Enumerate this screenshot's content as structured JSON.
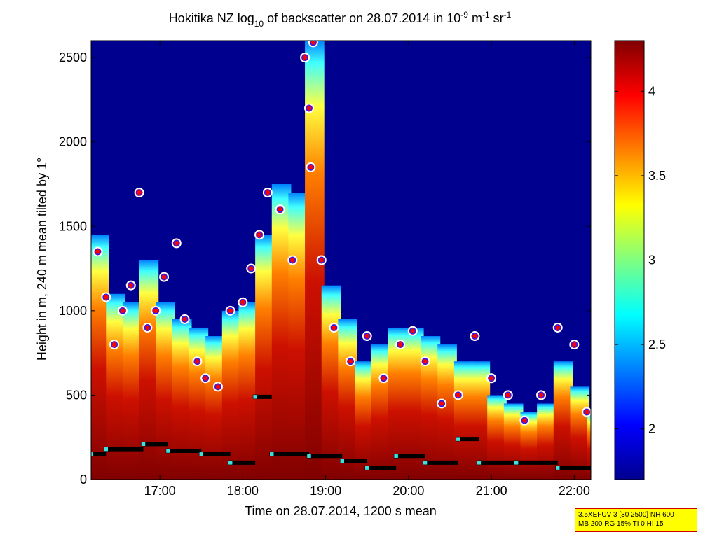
{
  "chart_data": {
    "type": "heatmap",
    "title_main": "Hokitika NZ log",
    "title_sub": "10",
    "title_mid": " of backscatter on 28.07.2014 in 10",
    "title_exp1": "-9",
    "title_unit1": " m",
    "title_exp2": "-1",
    "title_unit2": " sr",
    "title_exp3": "-1",
    "xlabel": "Time on 28.07.2014, 1200 s mean",
    "ylabel": "Height in m, 240 m mean tilted by 1°",
    "xlim_hours": [
      16.17,
      22.2
    ],
    "ylim": [
      0,
      2600
    ],
    "xticks": [
      {
        "hour": 17,
        "label": "17:00"
      },
      {
        "hour": 18,
        "label": "18:00"
      },
      {
        "hour": 19,
        "label": "19:00"
      },
      {
        "hour": 20,
        "label": "20:00"
      },
      {
        "hour": 21,
        "label": "21:00"
      },
      {
        "hour": 22,
        "label": "22:00"
      }
    ],
    "yticks": [
      {
        "value": 0,
        "label": "0"
      },
      {
        "value": 500,
        "label": "500"
      },
      {
        "value": 1000,
        "label": "1000"
      },
      {
        "value": 1500,
        "label": "1500"
      },
      {
        "value": 2000,
        "label": "2000"
      },
      {
        "value": 2500,
        "label": "2500"
      }
    ],
    "colorbar": {
      "clim": [
        1.7,
        4.3
      ],
      "ticks": [
        {
          "value": 2,
          "label": "2"
        },
        {
          "value": 2.5,
          "label": "2.5"
        },
        {
          "value": 3,
          "label": "3"
        },
        {
          "value": 3.5,
          "label": "3.5"
        },
        {
          "value": 4,
          "label": "4"
        }
      ],
      "colormap": "jet"
    },
    "backscatter_columns": [
      {
        "t": 16.2,
        "top": 1450
      },
      {
        "t": 16.4,
        "top": 1100
      },
      {
        "t": 16.6,
        "top": 1050
      },
      {
        "t": 16.8,
        "top": 1300
      },
      {
        "t": 17.0,
        "top": 1050
      },
      {
        "t": 17.2,
        "top": 950
      },
      {
        "t": 17.4,
        "top": 900
      },
      {
        "t": 17.6,
        "top": 850
      },
      {
        "t": 17.8,
        "top": 1000
      },
      {
        "t": 18.0,
        "top": 1050
      },
      {
        "t": 18.2,
        "top": 1450
      },
      {
        "t": 18.4,
        "top": 1750
      },
      {
        "t": 18.6,
        "top": 1700
      },
      {
        "t": 18.8,
        "top": 2600
      },
      {
        "t": 19.0,
        "top": 1150
      },
      {
        "t": 19.2,
        "top": 950
      },
      {
        "t": 19.4,
        "top": 700
      },
      {
        "t": 19.6,
        "top": 800
      },
      {
        "t": 19.8,
        "top": 900
      },
      {
        "t": 20.0,
        "top": 900
      },
      {
        "t": 20.2,
        "top": 850
      },
      {
        "t": 20.4,
        "top": 800
      },
      {
        "t": 20.6,
        "top": 700
      },
      {
        "t": 20.8,
        "top": 700
      },
      {
        "t": 21.0,
        "top": 500
      },
      {
        "t": 21.2,
        "top": 450
      },
      {
        "t": 21.4,
        "top": 400
      },
      {
        "t": 21.6,
        "top": 450
      },
      {
        "t": 21.8,
        "top": 700
      },
      {
        "t": 22.0,
        "top": 550
      },
      {
        "t": 22.2,
        "top": 400
      }
    ],
    "cloud_layer_markers": [
      {
        "t": 16.25,
        "h": 1350
      },
      {
        "t": 16.35,
        "h": 1080
      },
      {
        "t": 16.45,
        "h": 800
      },
      {
        "t": 16.55,
        "h": 1000
      },
      {
        "t": 16.65,
        "h": 1150
      },
      {
        "t": 16.75,
        "h": 1700
      },
      {
        "t": 16.85,
        "h": 900
      },
      {
        "t": 16.95,
        "h": 1000
      },
      {
        "t": 17.05,
        "h": 1200
      },
      {
        "t": 17.2,
        "h": 1400
      },
      {
        "t": 17.3,
        "h": 950
      },
      {
        "t": 17.45,
        "h": 700
      },
      {
        "t": 17.55,
        "h": 600
      },
      {
        "t": 17.7,
        "h": 550
      },
      {
        "t": 17.85,
        "h": 1000
      },
      {
        "t": 18.0,
        "h": 1050
      },
      {
        "t": 18.1,
        "h": 1250
      },
      {
        "t": 18.2,
        "h": 1450
      },
      {
        "t": 18.3,
        "h": 1700
      },
      {
        "t": 18.45,
        "h": 1600
      },
      {
        "t": 18.6,
        "h": 1300
      },
      {
        "t": 18.75,
        "h": 2500
      },
      {
        "t": 18.8,
        "h": 2200
      },
      {
        "t": 18.85,
        "h": 2590
      },
      {
        "t": 18.82,
        "h": 1850
      },
      {
        "t": 18.95,
        "h": 1300
      },
      {
        "t": 19.1,
        "h": 900
      },
      {
        "t": 19.3,
        "h": 700
      },
      {
        "t": 19.5,
        "h": 850
      },
      {
        "t": 19.7,
        "h": 600
      },
      {
        "t": 19.9,
        "h": 800
      },
      {
        "t": 20.05,
        "h": 880
      },
      {
        "t": 20.2,
        "h": 700
      },
      {
        "t": 20.4,
        "h": 450
      },
      {
        "t": 20.6,
        "h": 500
      },
      {
        "t": 20.8,
        "h": 850
      },
      {
        "t": 21.0,
        "h": 600
      },
      {
        "t": 21.2,
        "h": 500
      },
      {
        "t": 21.4,
        "h": 350
      },
      {
        "t": 21.6,
        "h": 500
      },
      {
        "t": 21.8,
        "h": 900
      },
      {
        "t": 22.0,
        "h": 800
      },
      {
        "t": 22.15,
        "h": 400
      }
    ],
    "mixing_layer_steps": [
      {
        "t0": 16.17,
        "t1": 16.35,
        "h": 150
      },
      {
        "t0": 16.35,
        "t1": 16.8,
        "h": 180
      },
      {
        "t0": 16.8,
        "t1": 17.1,
        "h": 210
      },
      {
        "t0": 17.1,
        "t1": 17.5,
        "h": 170
      },
      {
        "t0": 17.5,
        "t1": 17.85,
        "h": 150
      },
      {
        "t0": 17.85,
        "t1": 18.15,
        "h": 100
      },
      {
        "t0": 18.15,
        "t1": 18.35,
        "h": 490
      },
      {
        "t0": 18.35,
        "t1": 18.8,
        "h": 150
      },
      {
        "t0": 18.8,
        "t1": 19.2,
        "h": 140
      },
      {
        "t0": 19.2,
        "t1": 19.5,
        "h": 110
      },
      {
        "t0": 19.5,
        "t1": 19.85,
        "h": 70
      },
      {
        "t0": 19.85,
        "t1": 20.2,
        "h": 140
      },
      {
        "t0": 20.2,
        "t1": 20.6,
        "h": 100
      },
      {
        "t0": 20.6,
        "t1": 20.85,
        "h": 240
      },
      {
        "t0": 20.85,
        "t1": 21.3,
        "h": 100
      },
      {
        "t0": 21.3,
        "t1": 21.8,
        "h": 100
      },
      {
        "t0": 21.8,
        "t1": 22.2,
        "h": 70
      }
    ]
  },
  "info_box": {
    "line1": "3.5XEFUV 3 [30 2500] NH 600",
    "line2": "MB 200 RG 15% TI 0 HI 15"
  },
  "colors": {
    "background_low": "#00008f",
    "high": "#800000",
    "marker_fill": "#ff0000",
    "marker_ring_inner": "#2020ff",
    "marker_ring_outer": "#ffffff",
    "layer_marker": "#40e0e0",
    "layer_line": "#000000"
  }
}
